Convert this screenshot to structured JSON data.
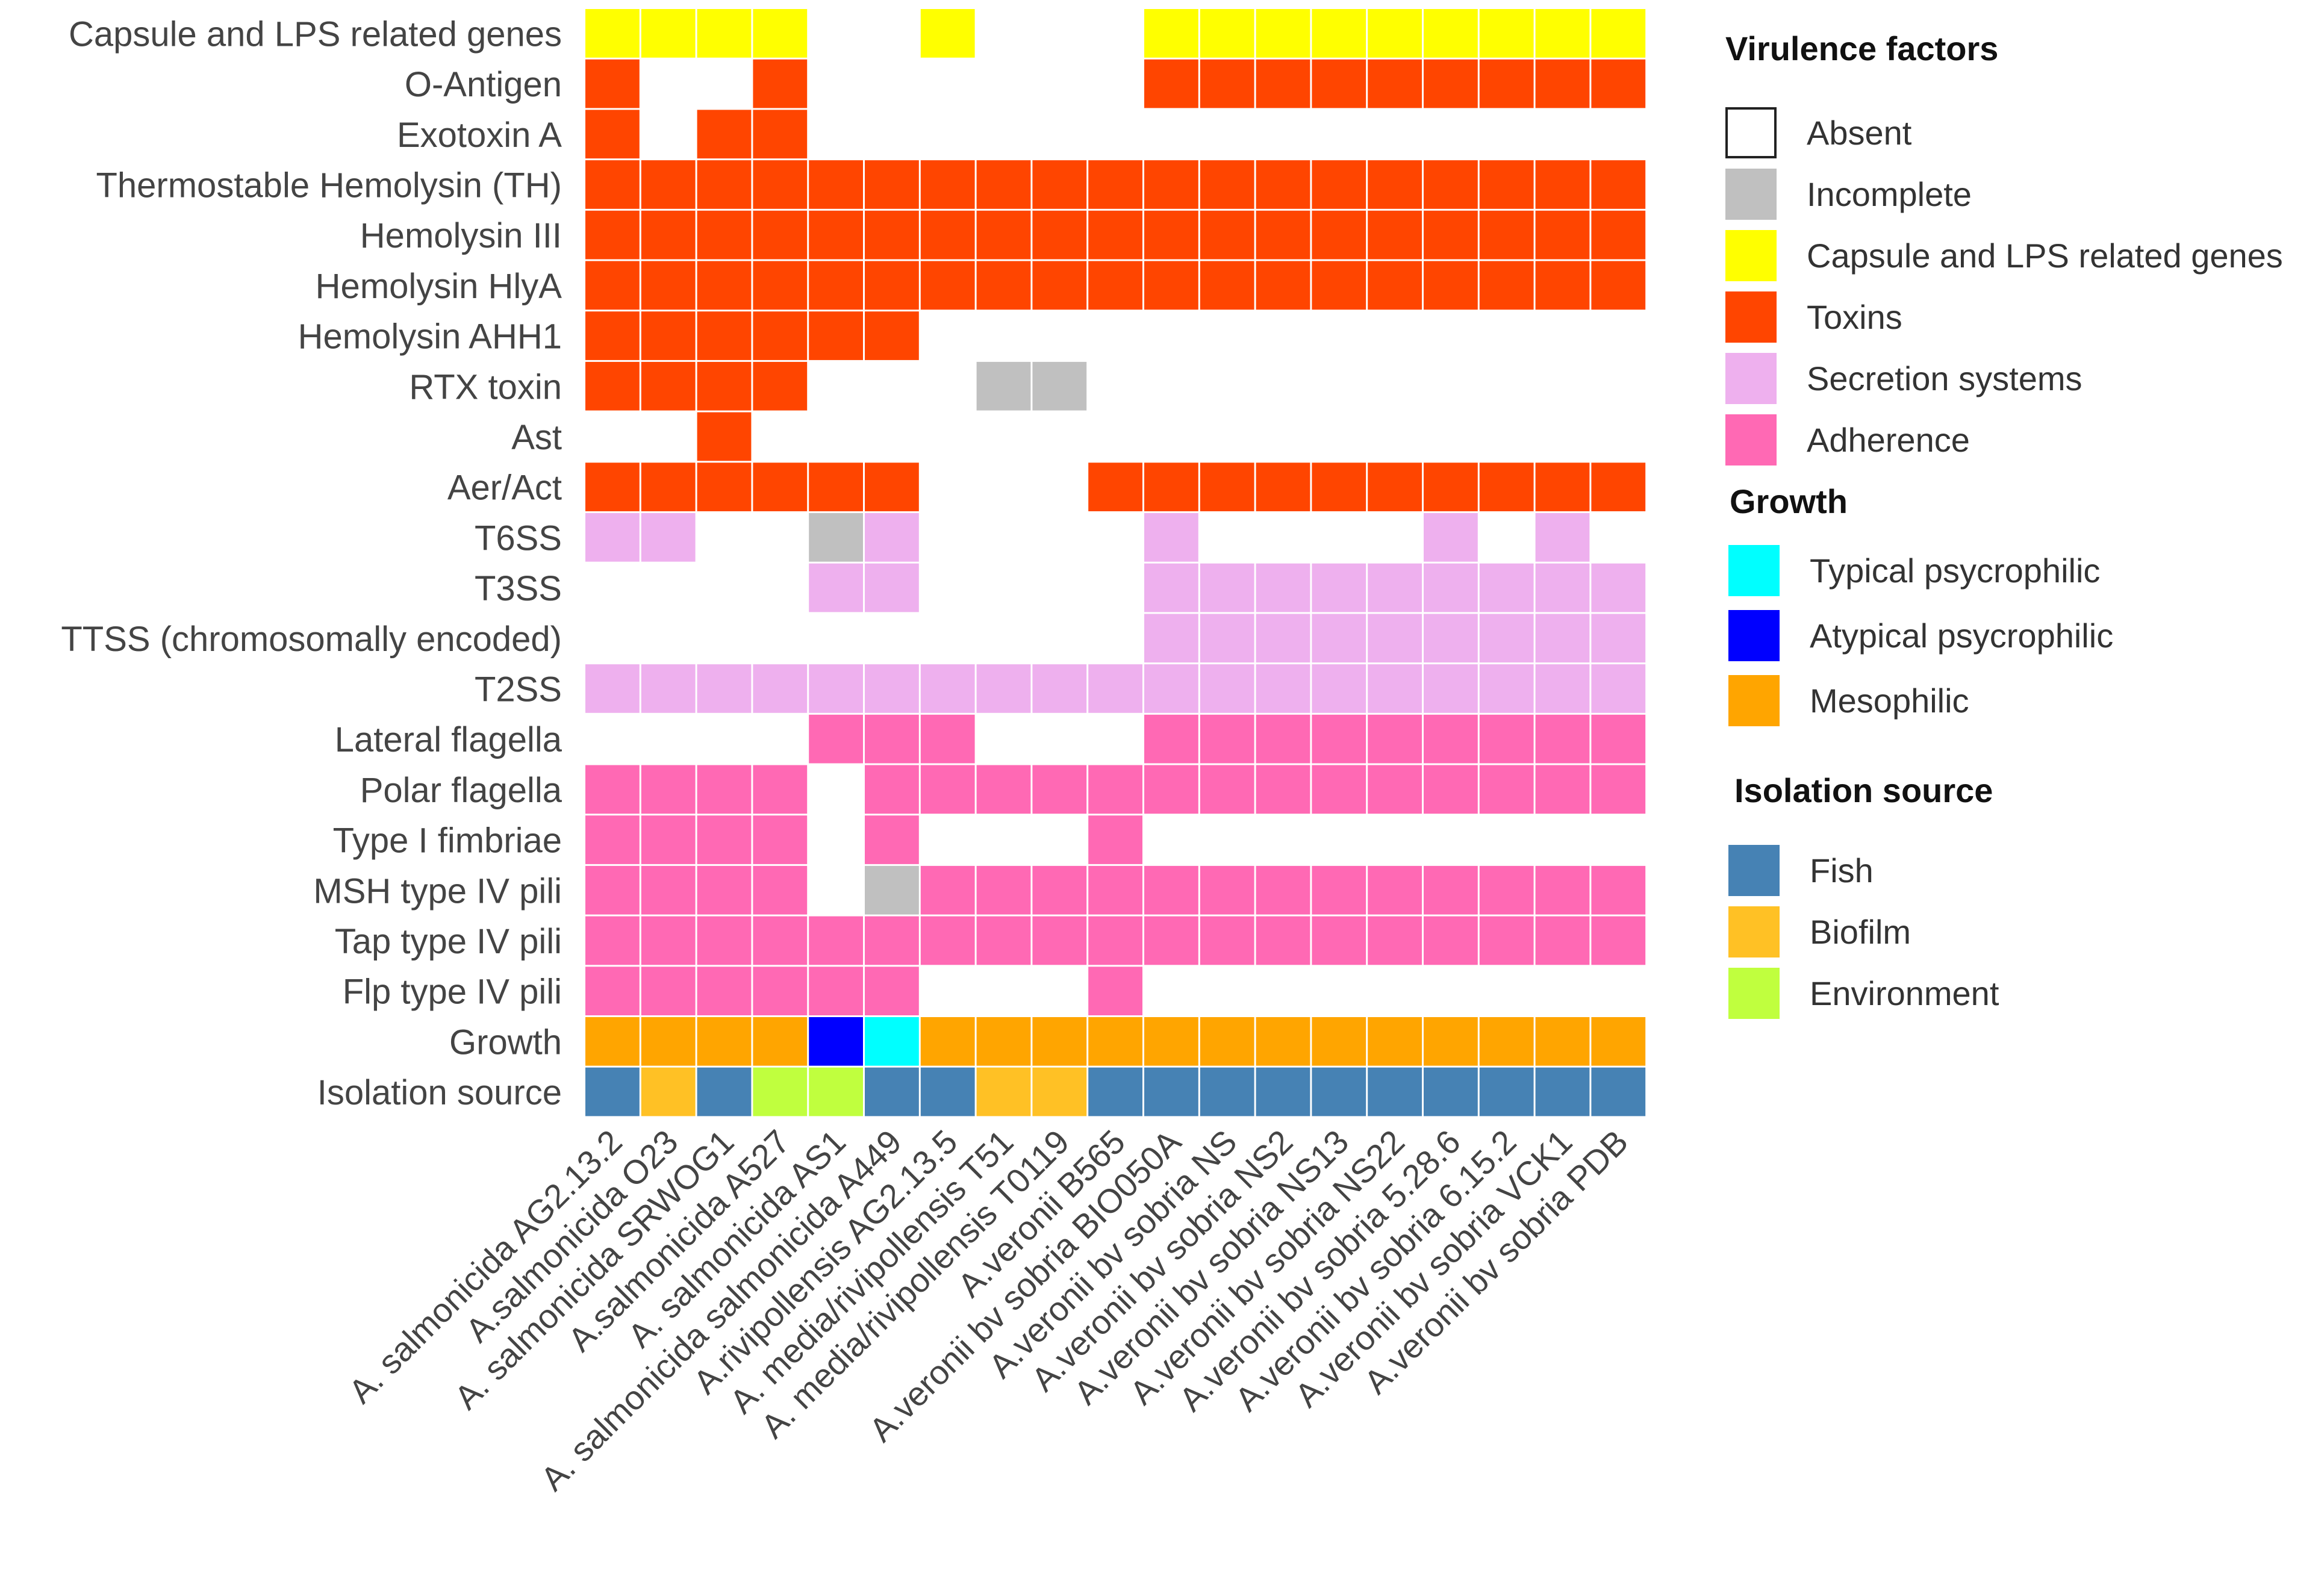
{
  "chart_data": {
    "type": "heatmap",
    "rows": [
      "Capsule and LPS related genes",
      "O-Antigen",
      "Exotoxin A",
      "Thermostable Hemolysin (TH)",
      "Hemolysin III",
      "Hemolysin HlyA",
      "Hemolysin AHH1",
      "RTX toxin",
      "Ast",
      "Aer/Act",
      "T6SS",
      "T3SS",
      "TTSS (chromosomally encoded)",
      "T2SS",
      "Lateral flagella",
      "Polar flagella",
      "Type I fimbriae",
      "MSH type IV pili",
      "Tap type IV pili",
      "Flp type IV pili",
      "Growth",
      "Isolation source"
    ],
    "columns": [
      "A. salmonicida AG2.13.2",
      "A.salmonicida O23",
      "A. salmonicida SRWOG1",
      "A.salmonicida A527",
      "A. salmonicida AS1",
      "A. salmonicida salmonicida A449",
      "A.rivipollensis AG2.13.5",
      "A. media/rivipollensis T51",
      "A. media/rivipollensis T0119",
      "A.veronii B565",
      "A.veronii bv sobria BIO050A",
      "A.veronii bv sobria NS",
      "A.veronii bv sobria NS2",
      "A.veronii bv sobria NS13",
      "A.veronii bv sobria NS22",
      "A.veronii bv sobria 5.28.6",
      "A.veronii bv sobria 6.15.2",
      "A.veronii bv sobria VCK1",
      "A.veronii bv sobria PDB"
    ],
    "category_codes": {
      "0": "Absent",
      "I": "Incomplete",
      "C": "Capsule and LPS related genes",
      "T": "Toxins",
      "S": "Secretion systems",
      "A": "Adherence",
      "TP": "Typical psycrophilic",
      "AP": "Atypical psycrophilic",
      "M": "Mesophilic",
      "F": "Fish",
      "B": "Biofilm",
      "E": "Environment"
    },
    "matrix": [
      [
        "C",
        "C",
        "C",
        "C",
        "0",
        "0",
        "C",
        "0",
        "0",
        "0",
        "C",
        "C",
        "C",
        "C",
        "C",
        "C",
        "C",
        "C",
        "C"
      ],
      [
        "T",
        "0",
        "0",
        "T",
        "0",
        "0",
        "0",
        "0",
        "0",
        "0",
        "T",
        "T",
        "T",
        "T",
        "T",
        "T",
        "T",
        "T",
        "T"
      ],
      [
        "T",
        "0",
        "T",
        "T",
        "0",
        "0",
        "0",
        "0",
        "0",
        "0",
        "0",
        "0",
        "0",
        "0",
        "0",
        "0",
        "0",
        "0",
        "0"
      ],
      [
        "T",
        "T",
        "T",
        "T",
        "T",
        "T",
        "T",
        "T",
        "T",
        "T",
        "T",
        "T",
        "T",
        "T",
        "T",
        "T",
        "T",
        "T",
        "T"
      ],
      [
        "T",
        "T",
        "T",
        "T",
        "T",
        "T",
        "T",
        "T",
        "T",
        "T",
        "T",
        "T",
        "T",
        "T",
        "T",
        "T",
        "T",
        "T",
        "T"
      ],
      [
        "T",
        "T",
        "T",
        "T",
        "T",
        "T",
        "T",
        "T",
        "T",
        "T",
        "T",
        "T",
        "T",
        "T",
        "T",
        "T",
        "T",
        "T",
        "T"
      ],
      [
        "T",
        "T",
        "T",
        "T",
        "T",
        "T",
        "0",
        "0",
        "0",
        "0",
        "0",
        "0",
        "0",
        "0",
        "0",
        "0",
        "0",
        "0",
        "0"
      ],
      [
        "T",
        "T",
        "T",
        "T",
        "0",
        "0",
        "0",
        "I",
        "I",
        "0",
        "0",
        "0",
        "0",
        "0",
        "0",
        "0",
        "0",
        "0",
        "0"
      ],
      [
        "0",
        "0",
        "T",
        "0",
        "0",
        "0",
        "0",
        "0",
        "0",
        "0",
        "0",
        "0",
        "0",
        "0",
        "0",
        "0",
        "0",
        "0",
        "0"
      ],
      [
        "T",
        "T",
        "T",
        "T",
        "T",
        "T",
        "0",
        "0",
        "0",
        "T",
        "T",
        "T",
        "T",
        "T",
        "T",
        "T",
        "T",
        "T",
        "T"
      ],
      [
        "S",
        "S",
        "0",
        "0",
        "I",
        "S",
        "0",
        "0",
        "0",
        "0",
        "S",
        "0",
        "0",
        "0",
        "0",
        "S",
        "0",
        "S",
        "0"
      ],
      [
        "0",
        "0",
        "0",
        "0",
        "S",
        "S",
        "0",
        "0",
        "0",
        "0",
        "S",
        "S",
        "S",
        "S",
        "S",
        "S",
        "S",
        "S",
        "S"
      ],
      [
        "0",
        "0",
        "0",
        "0",
        "0",
        "0",
        "0",
        "0",
        "0",
        "0",
        "S",
        "S",
        "S",
        "S",
        "S",
        "S",
        "S",
        "S",
        "S"
      ],
      [
        "S",
        "S",
        "S",
        "S",
        "S",
        "S",
        "S",
        "S",
        "S",
        "S",
        "S",
        "S",
        "S",
        "S",
        "S",
        "S",
        "S",
        "S",
        "S"
      ],
      [
        "0",
        "0",
        "0",
        "0",
        "A",
        "A",
        "A",
        "0",
        "0",
        "0",
        "A",
        "A",
        "A",
        "A",
        "A",
        "A",
        "A",
        "A",
        "A"
      ],
      [
        "A",
        "A",
        "A",
        "A",
        "0",
        "A",
        "A",
        "A",
        "A",
        "A",
        "A",
        "A",
        "A",
        "A",
        "A",
        "A",
        "A",
        "A",
        "A"
      ],
      [
        "A",
        "A",
        "A",
        "A",
        "0",
        "A",
        "0",
        "0",
        "0",
        "A",
        "0",
        "0",
        "0",
        "0",
        "0",
        "0",
        "0",
        "0",
        "0"
      ],
      [
        "A",
        "A",
        "A",
        "A",
        "0",
        "I",
        "A",
        "A",
        "A",
        "A",
        "A",
        "A",
        "A",
        "A",
        "A",
        "A",
        "A",
        "A",
        "A"
      ],
      [
        "A",
        "A",
        "A",
        "A",
        "A",
        "A",
        "A",
        "A",
        "A",
        "A",
        "A",
        "A",
        "A",
        "A",
        "A",
        "A",
        "A",
        "A",
        "A"
      ],
      [
        "A",
        "A",
        "A",
        "A",
        "A",
        "A",
        "0",
        "0",
        "0",
        "A",
        "0",
        "0",
        "0",
        "0",
        "0",
        "0",
        "0",
        "0",
        "0"
      ],
      [
        "M",
        "M",
        "M",
        "M",
        "AP",
        "TP",
        "M",
        "M",
        "M",
        "M",
        "M",
        "M",
        "M",
        "M",
        "M",
        "M",
        "M",
        "M",
        "M"
      ],
      [
        "F",
        "B",
        "F",
        "E",
        "E",
        "F",
        "F",
        "B",
        "B",
        "F",
        "F",
        "F",
        "F",
        "F",
        "F",
        "F",
        "F",
        "F",
        "F"
      ]
    ],
    "legend": [
      {
        "title": "Virulence factors",
        "items": [
          {
            "code": "0",
            "label": "Absent",
            "color": "#ffffff"
          },
          {
            "code": "I",
            "label": "Incomplete",
            "color": "#c0c0c0"
          },
          {
            "code": "C",
            "label": "Capsule and LPS related genes",
            "color": "#ffff00"
          },
          {
            "code": "T",
            "label": "Toxins",
            "color": "#ff4500"
          },
          {
            "code": "S",
            "label": "Secretion systems",
            "color": "#eeb0ee"
          },
          {
            "code": "A",
            "label": "Adherence",
            "color": "#ff69b4"
          }
        ]
      },
      {
        "title": "Growth",
        "items": [
          {
            "code": "TP",
            "label": "Typical psycrophilic",
            "color": "#00ffff"
          },
          {
            "code": "AP",
            "label": "Atypical psycrophilic",
            "color": "#0000ff"
          },
          {
            "code": "M",
            "label": "Mesophilic",
            "color": "#ffa500"
          }
        ]
      },
      {
        "title": "Isolation source",
        "items": [
          {
            "code": "F",
            "label": "Fish",
            "color": "#4682b4"
          },
          {
            "code": "B",
            "label": "Biofilm",
            "color": "#ffc125"
          },
          {
            "code": "E",
            "label": "Environment",
            "color": "#c0ff3e"
          }
        ]
      }
    ]
  }
}
